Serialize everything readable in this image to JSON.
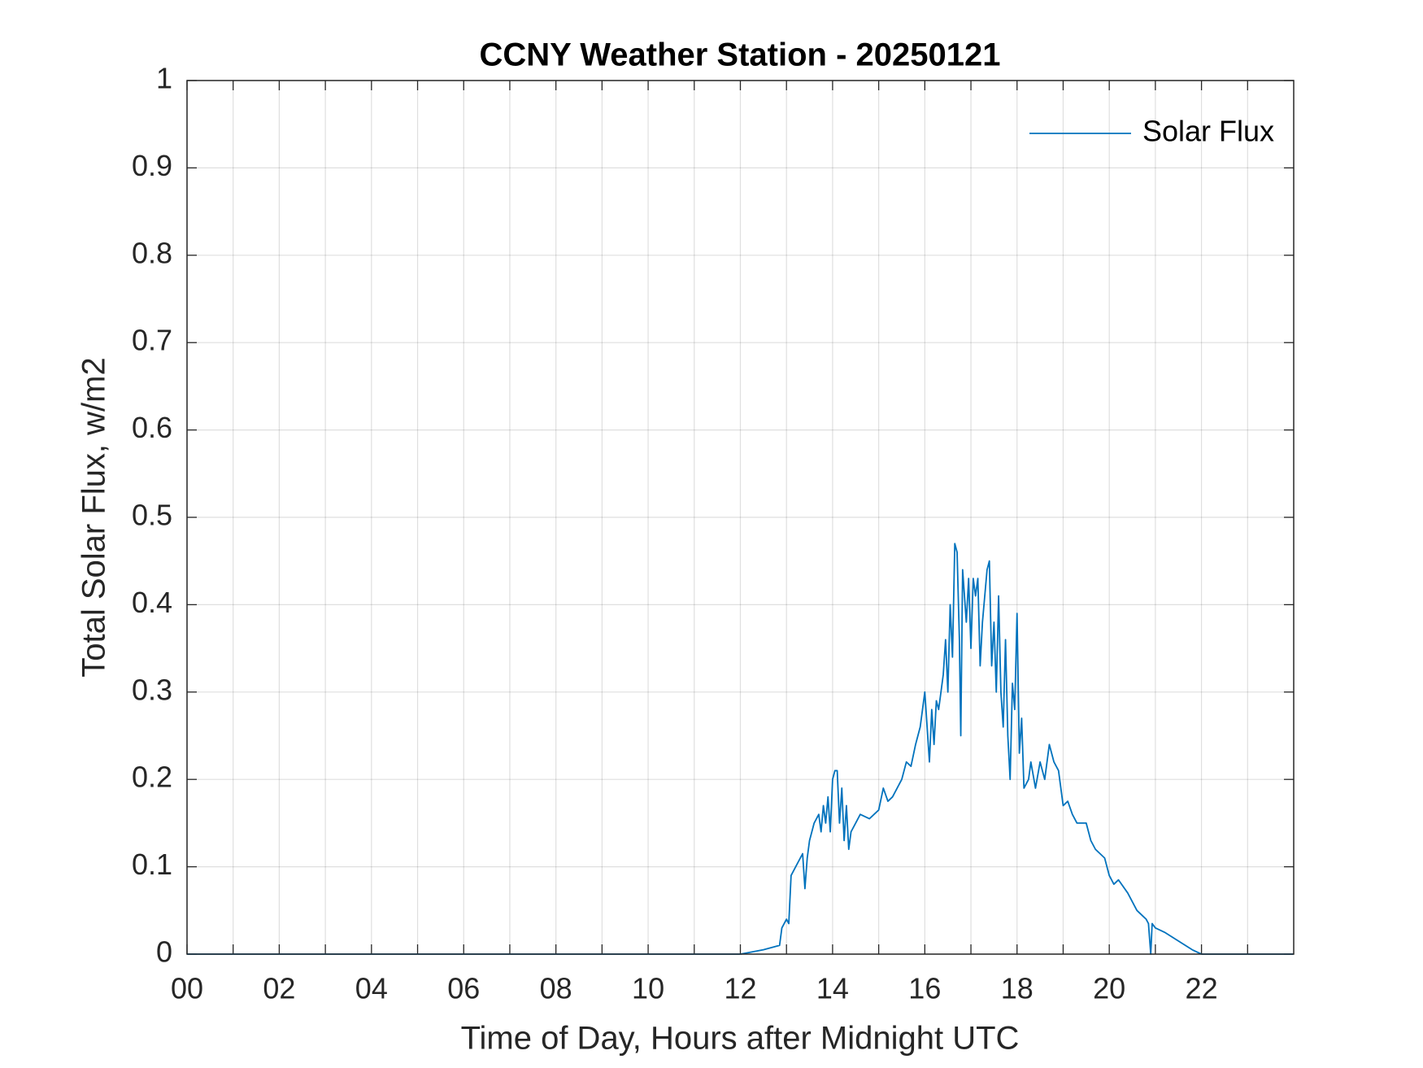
{
  "chart_data": {
    "type": "line",
    "title": "CCNY Weather Station - 20250121",
    "x_label": "Time of Day, Hours after Midnight UTC",
    "y_label": "Total Solar Flux, w/m2",
    "xlim": [
      0,
      24
    ],
    "ylim": [
      0,
      1
    ],
    "xticks": [
      {
        "value": 0,
        "label": "00"
      },
      {
        "value": 2,
        "label": "02"
      },
      {
        "value": 4,
        "label": "04"
      },
      {
        "value": 6,
        "label": "06"
      },
      {
        "value": 8,
        "label": "08"
      },
      {
        "value": 10,
        "label": "10"
      },
      {
        "value": 12,
        "label": "12"
      },
      {
        "value": 14,
        "label": "14"
      },
      {
        "value": 16,
        "label": "16"
      },
      {
        "value": 18,
        "label": "18"
      },
      {
        "value": 20,
        "label": "20"
      },
      {
        "value": 22,
        "label": "22"
      }
    ],
    "xminorticks": [
      1,
      3,
      5,
      7,
      9,
      11,
      13,
      15,
      17,
      19,
      21,
      23
    ],
    "yticks": [
      0,
      0.1,
      0.2,
      0.3,
      0.4,
      0.5,
      0.6,
      0.7,
      0.8,
      0.9,
      1
    ],
    "grid": true,
    "legend": "upper right",
    "x": [
      0,
      12.0,
      12.2,
      12.5,
      12.85,
      12.9,
      13.0,
      13.05,
      13.1,
      13.2,
      13.35,
      13.4,
      13.45,
      13.5,
      13.6,
      13.7,
      13.75,
      13.8,
      13.85,
      13.9,
      13.95,
      14.0,
      14.05,
      14.1,
      14.15,
      14.2,
      14.25,
      14.3,
      14.35,
      14.4,
      14.5,
      14.6,
      14.8,
      15.0,
      15.1,
      15.2,
      15.3,
      15.4,
      15.5,
      15.6,
      15.7,
      15.8,
      15.9,
      15.95,
      16.0,
      16.05,
      16.1,
      16.15,
      16.2,
      16.25,
      16.3,
      16.4,
      16.45,
      16.5,
      16.55,
      16.6,
      16.65,
      16.7,
      16.75,
      16.78,
      16.82,
      16.9,
      16.95,
      17.0,
      17.05,
      17.1,
      17.15,
      17.2,
      17.25,
      17.35,
      17.4,
      17.45,
      17.5,
      17.55,
      17.6,
      17.65,
      17.7,
      17.75,
      17.8,
      17.85,
      17.9,
      17.95,
      18.0,
      18.05,
      18.1,
      18.15,
      18.25,
      18.3,
      18.4,
      18.5,
      18.6,
      18.7,
      18.8,
      18.9,
      19.0,
      19.1,
      19.2,
      19.3,
      19.5,
      19.6,
      19.7,
      19.8,
      19.9,
      20.0,
      20.1,
      20.2,
      20.4,
      20.6,
      20.8,
      20.85,
      20.9,
      20.93,
      21.0,
      21.2,
      21.5,
      21.8,
      22.0,
      23.99
    ],
    "series": [
      {
        "name": "Solar Flux",
        "color": "#0072bd",
        "values": [
          0,
          0,
          0.002,
          0.005,
          0.01,
          0.03,
          0.04,
          0.035,
          0.09,
          0.1,
          0.115,
          0.075,
          0.11,
          0.13,
          0.15,
          0.16,
          0.14,
          0.17,
          0.15,
          0.18,
          0.14,
          0.2,
          0.21,
          0.21,
          0.15,
          0.19,
          0.13,
          0.17,
          0.12,
          0.14,
          0.15,
          0.16,
          0.155,
          0.165,
          0.19,
          0.175,
          0.18,
          0.19,
          0.2,
          0.22,
          0.215,
          0.24,
          0.26,
          0.28,
          0.3,
          0.26,
          0.22,
          0.28,
          0.24,
          0.29,
          0.28,
          0.32,
          0.36,
          0.3,
          0.4,
          0.34,
          0.47,
          0.46,
          0.36,
          0.25,
          0.44,
          0.38,
          0.43,
          0.35,
          0.43,
          0.41,
          0.43,
          0.33,
          0.38,
          0.44,
          0.45,
          0.33,
          0.38,
          0.3,
          0.41,
          0.3,
          0.26,
          0.36,
          0.25,
          0.2,
          0.31,
          0.28,
          0.39,
          0.23,
          0.27,
          0.19,
          0.2,
          0.22,
          0.19,
          0.22,
          0.2,
          0.24,
          0.22,
          0.21,
          0.17,
          0.175,
          0.16,
          0.15,
          0.15,
          0.13,
          0.12,
          0.115,
          0.11,
          0.09,
          0.08,
          0.085,
          0.07,
          0.05,
          0.04,
          0.035,
          0,
          0.035,
          0.03,
          0.025,
          0.015,
          0.005,
          0,
          0
        ]
      }
    ]
  }
}
